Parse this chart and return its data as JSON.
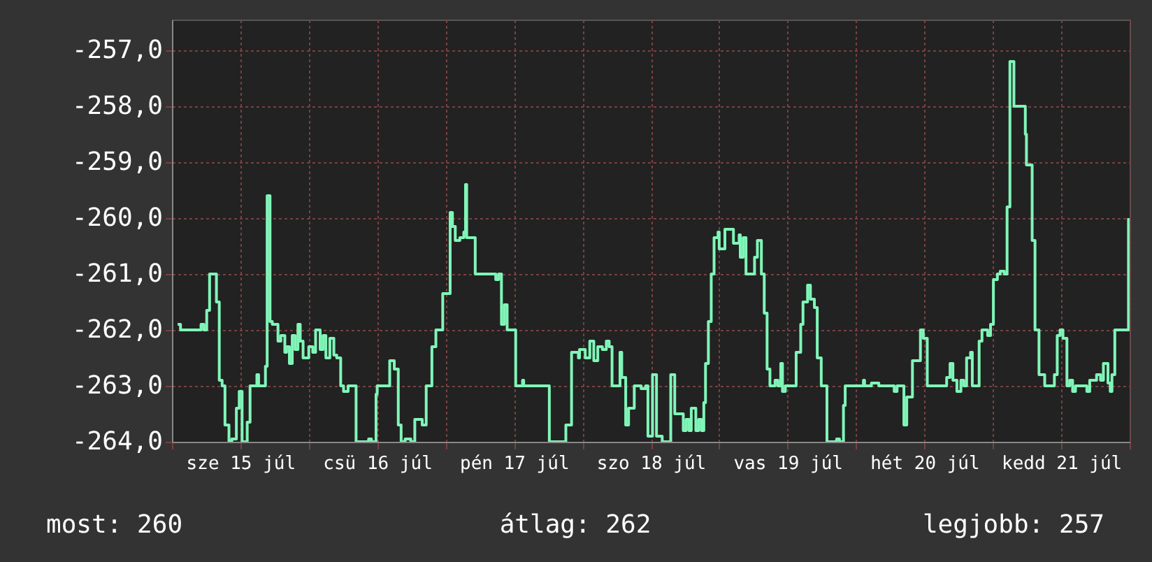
{
  "chart_data": {
    "type": "line",
    "x": [
      "--07-15T01:00",
      "--07-15T01:30",
      "--07-15T04:42",
      "--07-15T05:06",
      "--07-15T05:36",
      "--07-15T06:06",
      "--07-15T06:36",
      "--07-15T07:36",
      "--07-15T07:48",
      "--07-15T08:18",
      "--07-15T08:48",
      "--07-15T09:18",
      "--07-15T10:00",
      "--07-15T10:30",
      "--07-15T11:18",
      "--07-15T11:48",
      "--07-15T12:18",
      "--07-15T12:42",
      "--07-15T13:12",
      "--07-15T13:42",
      "--07-15T14:30",
      "--07-15T14:54",
      "--07-15T15:12",
      "--07-15T15:54",
      "--07-15T16:24",
      "--07-15T16:42",
      "--07-15T17:12",
      "--07-15T17:36",
      "--07-15T18:36",
      "--07-15T19:06",
      "--07-15T19:48",
      "--07-15T20:06",
      "--07-15T20:36",
      "--07-15T21:06",
      "--07-15T21:36",
      "--07-15T22:06",
      "--07-15T22:30",
      "--07-15T23:00",
      "--07-15T23:30",
      "--07-16T00:00",
      "--07-16T00:42",
      "--07-16T01:12",
      "--07-16T02:00",
      "--07-16T02:30",
      "--07-16T03:00",
      "--07-16T03:42",
      "--07-16T04:24",
      "--07-16T04:54",
      "--07-16T05:36",
      "--07-16T06:06",
      "--07-16T06:54",
      "--07-16T08:06",
      "--07-16T08:18",
      "--07-16T10:06",
      "--07-16T10:30",
      "--07-16T11:00",
      "--07-16T11:48",
      "--07-16T12:00",
      "--07-16T13:42",
      "--07-16T14:12",
      "--07-16T15:00",
      "--07-16T15:42",
      "--07-16T16:12",
      "--07-16T16:54",
      "--07-16T17:54",
      "--07-16T18:36",
      "--07-16T19:24",
      "--07-16T19:54",
      "--07-16T20:36",
      "--07-16T21:36",
      "--07-16T22:18",
      "--07-16T23:00",
      "--07-16T23:30",
      "--07-17T00:18",
      "--07-17T00:48",
      "--07-17T01:12",
      "--07-17T01:42",
      "--07-17T02:30",
      "--07-17T03:12",
      "--07-17T03:30",
      "--07-17T03:42",
      "--07-17T04:54",
      "--07-17T05:12",
      "--07-17T08:36",
      "--07-17T08:48",
      "--07-17T09:18",
      "--07-17T09:48",
      "--07-17T10:18",
      "--07-17T10:48",
      "--07-17T11:30",
      "--07-17T12:18",
      "--07-17T13:30",
      "--07-17T13:42",
      "--07-17T17:24",
      "--07-17T18:12",
      "--07-17T20:24",
      "--07-17T21:06",
      "--07-17T22:06",
      "--07-17T23:18",
      "--07-17T23:30",
      "--07-18T00:30",
      "--07-18T01:18",
      "--07-18T02:00",
      "--07-18T02:42",
      "--07-18T03:30",
      "--07-18T04:12",
      "--07-18T04:42",
      "--07-18T05:12",
      "--07-18T05:54",
      "--07-18T06:36",
      "--07-18T06:54",
      "--07-18T07:36",
      "--07-18T08:06",
      "--07-18T09:06",
      "--07-18T10:18",
      "--07-18T11:06",
      "--07-18T11:30",
      "--07-18T12:18",
      "--07-18T13:00",
      "--07-18T14:00",
      "--07-18T15:12",
      "--07-18T15:30",
      "--07-18T16:12",
      "--07-18T16:54",
      "--07-18T17:42",
      "--07-18T18:12",
      "--07-18T18:42",
      "--07-18T19:06",
      "--07-18T19:54",
      "--07-18T20:24",
      "--07-18T20:54",
      "--07-18T21:18",
      "--07-18T21:36",
      "--07-18T22:06",
      "--07-18T22:36",
      "--07-18T23:06",
      "--07-18T23:48",
      "--07-19T00:00",
      "--07-19T00:48",
      "--07-19T01:00",
      "--07-19T02:12",
      "--07-19T02:30",
      "--07-19T03:30",
      "--07-19T03:42",
      "--07-19T04:12",
      "--07-19T04:42",
      "--07-19T05:54",
      "--07-19T06:12",
      "--07-19T06:42",
      "--07-19T07:24",
      "--07-19T07:54",
      "--07-19T08:24",
      "--07-19T08:54",
      "--07-19T09:48",
      "--07-19T10:18",
      "--07-19T10:48",
      "--07-19T11:06",
      "--07-19T11:36",
      "--07-19T13:00",
      "--07-19T13:30",
      "--07-19T14:18",
      "--07-19T14:42",
      "--07-19T15:30",
      "--07-19T16:00",
      "--07-19T16:42",
      "--07-19T17:12",
      "--07-19T17:54",
      "--07-19T18:12",
      "--07-19T18:54",
      "--07-19T20:36",
      "--07-19T21:06",
      "--07-19T21:48",
      "--07-19T22:06",
      "--07-20T00:48",
      "--07-20T01:18",
      "--07-20T01:30",
      "--07-20T02:42",
      "--07-20T04:00",
      "--07-20T04:42",
      "--07-20T06:24",
      "--07-20T06:42",
      "--07-20T07:12",
      "--07-20T07:54",
      "--07-20T08:24",
      "--07-20T08:54",
      "--07-20T09:24",
      "--07-20T09:54",
      "--07-20T10:18",
      "--07-20T11:18",
      "--07-20T11:48",
      "--07-20T12:30",
      "--07-20T15:12",
      "--07-20T15:54",
      "--07-20T16:30",
      "--07-20T17:00",
      "--07-20T17:42",
      "--07-20T18:24",
      "--07-20T18:54",
      "--07-20T19:24",
      "--07-20T20:06",
      "--07-20T20:24",
      "--07-20T21:06",
      "--07-20T21:36",
      "--07-20T22:06",
      "--07-20T23:06",
      "--07-20T23:36",
      "--07-21T00:06",
      "--07-21T00:48",
      "--07-21T01:18",
      "--07-21T02:00",
      "--07-21T02:18",
      "--07-21T02:30",
      "--07-21T03:00",
      "--07-21T03:30",
      "--07-21T03:42",
      "--07-21T05:12",
      "--07-21T05:42",
      "--07-21T05:54",
      "--07-21T06:42",
      "--07-21T06:54",
      "--07-21T07:24",
      "--07-21T08:06",
      "--07-21T08:36",
      "--07-21T09:06",
      "--07-21T10:36",
      "--07-21T10:48",
      "--07-21T11:18",
      "--07-21T11:48",
      "--07-21T12:18",
      "--07-21T13:00",
      "--07-21T13:30",
      "--07-21T14:00",
      "--07-21T14:30",
      "--07-21T15:42",
      "--07-21T16:30",
      "--07-21T17:00",
      "--07-21T17:42",
      "--07-21T18:12",
      "--07-21T18:54",
      "--07-21T19:24",
      "--07-21T20:12",
      "--07-21T20:36",
      "--07-21T20:54",
      "--07-21T21:24",
      "--07-21T23:18",
      "--07-21T23:48"
    ],
    "series": [
      {
        "color": "#80f5b8",
        "values": [
          -261.9,
          -262.0,
          -262.0,
          -261.9,
          -262.0,
          -261.65,
          -261.0,
          -261.0,
          -261.5,
          -262.9,
          -263.0,
          -263.7,
          -264.0,
          -263.95,
          -263.4,
          -263.1,
          -264.0,
          -264.0,
          -263.65,
          -263.0,
          -263.0,
          -262.8,
          -263.0,
          -263.0,
          -262.65,
          -259.6,
          -261.85,
          -261.9,
          -262.2,
          -262.1,
          -262.4,
          -262.3,
          -262.6,
          -262.1,
          -262.35,
          -261.9,
          -262.2,
          -262.5,
          -262.5,
          -262.3,
          -262.4,
          -262.0,
          -262.35,
          -262.1,
          -262.5,
          -262.15,
          -262.45,
          -262.5,
          -263.0,
          -263.1,
          -263.0,
          -263.0,
          -264.0,
          -264.0,
          -263.95,
          -264.0,
          -263.15,
          -263.0,
          -263.0,
          -262.55,
          -262.7,
          -263.7,
          -264.0,
          -263.95,
          -264.0,
          -263.6,
          -263.6,
          -263.7,
          -263.0,
          -262.3,
          -262.0,
          -262.0,
          -261.35,
          -261.35,
          -259.9,
          -260.15,
          -260.4,
          -260.35,
          -260.25,
          -259.4,
          -260.35,
          -260.35,
          -261.0,
          -261.0,
          -261.1,
          -261.0,
          -261.9,
          -261.55,
          -262.0,
          -262.0,
          -263.0,
          -262.9,
          -263.0,
          -263.0,
          -264.0,
          -264.0,
          -263.7,
          -262.4,
          -262.5,
          -262.35,
          -262.5,
          -262.2,
          -262.55,
          -262.3,
          -262.35,
          -262.2,
          -262.3,
          -263.0,
          -263.0,
          -262.4,
          -262.85,
          -263.7,
          -263.4,
          -263.0,
          -263.05,
          -263.0,
          -263.9,
          -262.8,
          -263.9,
          -264.0,
          -264.0,
          -262.8,
          -263.5,
          -263.5,
          -263.8,
          -263.6,
          -263.8,
          -263.4,
          -263.8,
          -263.6,
          -263.8,
          -263.3,
          -262.6,
          -261.85,
          -261.0,
          -260.35,
          -260.25,
          -260.55,
          -260.55,
          -260.2,
          -260.2,
          -260.45,
          -260.3,
          -260.7,
          -260.35,
          -261.0,
          -261.0,
          -260.7,
          -260.4,
          -261.0,
          -261.7,
          -262.7,
          -263.0,
          -262.9,
          -263.0,
          -262.6,
          -263.1,
          -263.0,
          -263.0,
          -262.4,
          -261.9,
          -261.5,
          -261.2,
          -261.45,
          -261.6,
          -262.5,
          -263.0,
          -263.0,
          -264.0,
          -263.95,
          -264.0,
          -263.35,
          -263.0,
          -263.0,
          -262.9,
          -263.0,
          -262.95,
          -263.0,
          -263.0,
          -263.0,
          -263.1,
          -263.0,
          -263.0,
          -263.7,
          -263.2,
          -263.2,
          -262.55,
          -262.55,
          -262.0,
          -262.15,
          -263.0,
          -263.0,
          -262.85,
          -262.6,
          -262.9,
          -263.1,
          -262.9,
          -263.0,
          -262.5,
          -262.4,
          -263.0,
          -263.0,
          -262.2,
          -262.0,
          -262.1,
          -261.9,
          -261.1,
          -261.0,
          -260.95,
          -261.0,
          -261.0,
          -259.8,
          -257.2,
          -257.2,
          -258.0,
          -258.0,
          -258.5,
          -259.05,
          -259.05,
          -260.4,
          -262.0,
          -262.8,
          -262.8,
          -263.0,
          -263.0,
          -262.8,
          -262.1,
          -262.0,
          -262.15,
          -263.0,
          -262.9,
          -263.1,
          -263.0,
          -263.0,
          -263.1,
          -262.9,
          -262.9,
          -262.8,
          -262.9,
          -262.6,
          -262.95,
          -263.1,
          -262.8,
          -262.0,
          -262.0,
          -260.0
        ]
      }
    ],
    "xlim": [
      "--07-15T00:00",
      "--07-22T00:00"
    ],
    "xticks": [
      {
        "value": "--07-15T00:00",
        "label": null
      },
      {
        "value": "--07-15T12:00",
        "label": "sze 15 júl"
      },
      {
        "value": "--07-16T00:00",
        "label": null
      },
      {
        "value": "--07-16T12:00",
        "label": "csü 16 júl"
      },
      {
        "value": "--07-17T00:00",
        "label": null
      },
      {
        "value": "--07-17T12:00",
        "label": "pén 17 júl"
      },
      {
        "value": "--07-18T00:00",
        "label": null
      },
      {
        "value": "--07-18T12:00",
        "label": "szo 18 júl"
      },
      {
        "value": "--07-19T00:00",
        "label": null
      },
      {
        "value": "--07-19T12:00",
        "label": "vas 19 júl"
      },
      {
        "value": "--07-20T00:00",
        "label": null
      },
      {
        "value": "--07-20T12:00",
        "label": "hét 20 júl"
      },
      {
        "value": "--07-21T00:00",
        "label": null
      },
      {
        "value": "--07-21T12:00",
        "label": "kedd 21 júl"
      },
      {
        "value": "--07-22T00:00",
        "label": null
      }
    ],
    "ylim": [
      -264,
      -256.45
    ],
    "yticks": [
      {
        "value": -264,
        "label": "-264,0"
      },
      {
        "value": -263,
        "label": "-263,0"
      },
      {
        "value": -262,
        "label": "-262,0"
      },
      {
        "value": -261,
        "label": "-261,0"
      },
      {
        "value": -260,
        "label": "-260,0"
      },
      {
        "value": -259,
        "label": "-259,0"
      },
      {
        "value": -258,
        "label": "-258,0"
      },
      {
        "value": -257,
        "label": "-257,0"
      }
    ],
    "grid": true,
    "line_style": "solid",
    "annotations": [
      "most: 260",
      "átlag: 262",
      "legjobb: 257"
    ]
  }
}
